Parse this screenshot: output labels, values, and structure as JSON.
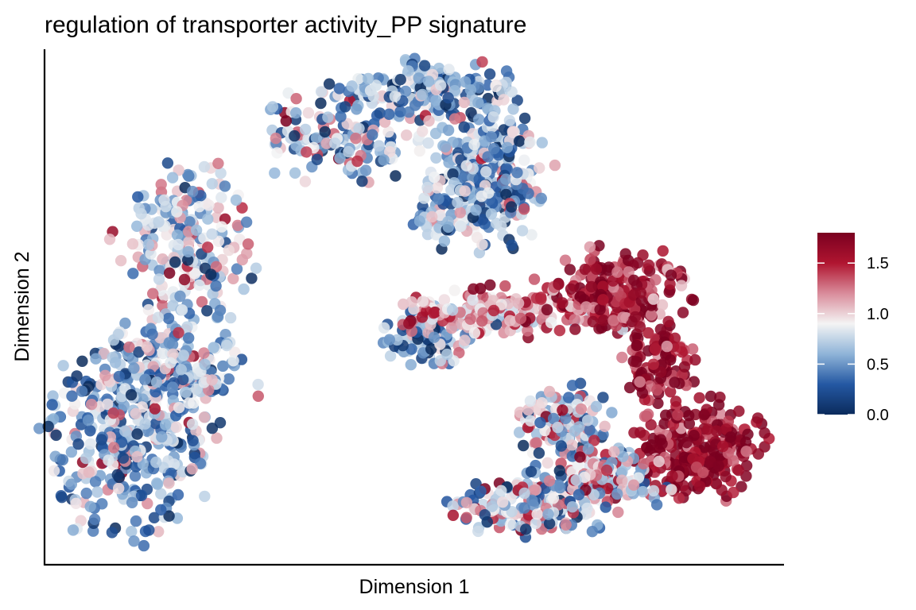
{
  "chart_data": {
    "type": "scatter",
    "title": "regulation of transporter activity_PP signature",
    "xlabel": "Dimension 1",
    "ylabel": "Dimension 2",
    "xlim": [
      0,
      100
    ],
    "ylim": [
      0,
      100
    ],
    "x_ticks": false,
    "y_ticks": false,
    "grid": false,
    "point_alpha": 0.85,
    "colorbar": {
      "placement": "right",
      "range": [
        0.0,
        1.8
      ],
      "ticks": [
        0.0,
        0.5,
        1.0,
        1.5
      ],
      "tick_labels": [
        "0.0",
        "0.5",
        "1.0",
        "1.5"
      ],
      "colors": [
        "#0b2b5c",
        "#2458a3",
        "#8fb4d8",
        "#f4f4f4",
        "#d98c9b",
        "#b01530",
        "#7a0020"
      ]
    },
    "clusters": [
      {
        "name": "",
        "cx": 19.4,
        "cy": 62.9,
        "sx": 4.7,
        "sy": 7.2,
        "n": 200,
        "mean": 0.85,
        "sd": 0.38
      },
      {
        "name": "",
        "cx": 11.1,
        "cy": 24.3,
        "sx": 5.5,
        "sy": 9.6,
        "n": 320,
        "mean": 0.62,
        "sd": 0.36
      },
      {
        "name": "",
        "cx": 17.0,
        "cy": 38.2,
        "sx": 5.7,
        "sy": 6.2,
        "n": 240,
        "mean": 0.64,
        "sd": 0.37
      },
      {
        "name": "",
        "cx": 40.5,
        "cy": 83.1,
        "sx": 6.2,
        "sy": 4.5,
        "n": 150,
        "mean": 0.7,
        "sd": 0.42
      },
      {
        "name": "",
        "cx": 52.0,
        "cy": 92.2,
        "sx": 6.0,
        "sy": 2.9,
        "n": 170,
        "mean": 0.55,
        "sd": 0.36
      },
      {
        "name": "",
        "cx": 60.2,
        "cy": 79.5,
        "sx": 4.5,
        "sy": 5.0,
        "n": 170,
        "mean": 0.62,
        "sd": 0.38
      },
      {
        "name": "",
        "cx": 57.8,
        "cy": 69.2,
        "sx": 4.2,
        "sy": 4.3,
        "n": 160,
        "mean": 0.6,
        "sd": 0.4
      },
      {
        "name": "",
        "cx": 51.9,
        "cy": 44.2,
        "sx": 3.0,
        "sy": 3.2,
        "n": 110,
        "mean": 0.55,
        "sd": 0.35
      },
      {
        "name": "",
        "cx": 62.1,
        "cy": 48.8,
        "sx": 6.5,
        "sy": 2.5,
        "n": 160,
        "mean": 1.2,
        "sd": 0.33
      },
      {
        "name": "",
        "cx": 77.2,
        "cy": 52.8,
        "sx": 5.2,
        "sy": 4.3,
        "n": 230,
        "mean": 1.55,
        "sd": 0.26
      },
      {
        "name": "",
        "cx": 83.2,
        "cy": 38.8,
        "sx": 2.4,
        "sy": 3.8,
        "n": 110,
        "mean": 1.6,
        "sd": 0.24
      },
      {
        "name": "",
        "cx": 88.5,
        "cy": 22.1,
        "sx": 4.4,
        "sy": 4.8,
        "n": 250,
        "mean": 1.65,
        "sd": 0.22
      },
      {
        "name": "",
        "cx": 70.1,
        "cy": 27.8,
        "sx": 3.1,
        "sy": 3.5,
        "n": 120,
        "mean": 0.85,
        "sd": 0.45
      },
      {
        "name": "",
        "cx": 76.0,
        "cy": 17.2,
        "sx": 4.6,
        "sy": 3.3,
        "n": 140,
        "mean": 1.0,
        "sd": 0.45
      },
      {
        "name": "",
        "cx": 66.1,
        "cy": 11.3,
        "sx": 5.2,
        "sy": 3.0,
        "n": 170,
        "mean": 0.72,
        "sd": 0.45
      }
    ]
  }
}
